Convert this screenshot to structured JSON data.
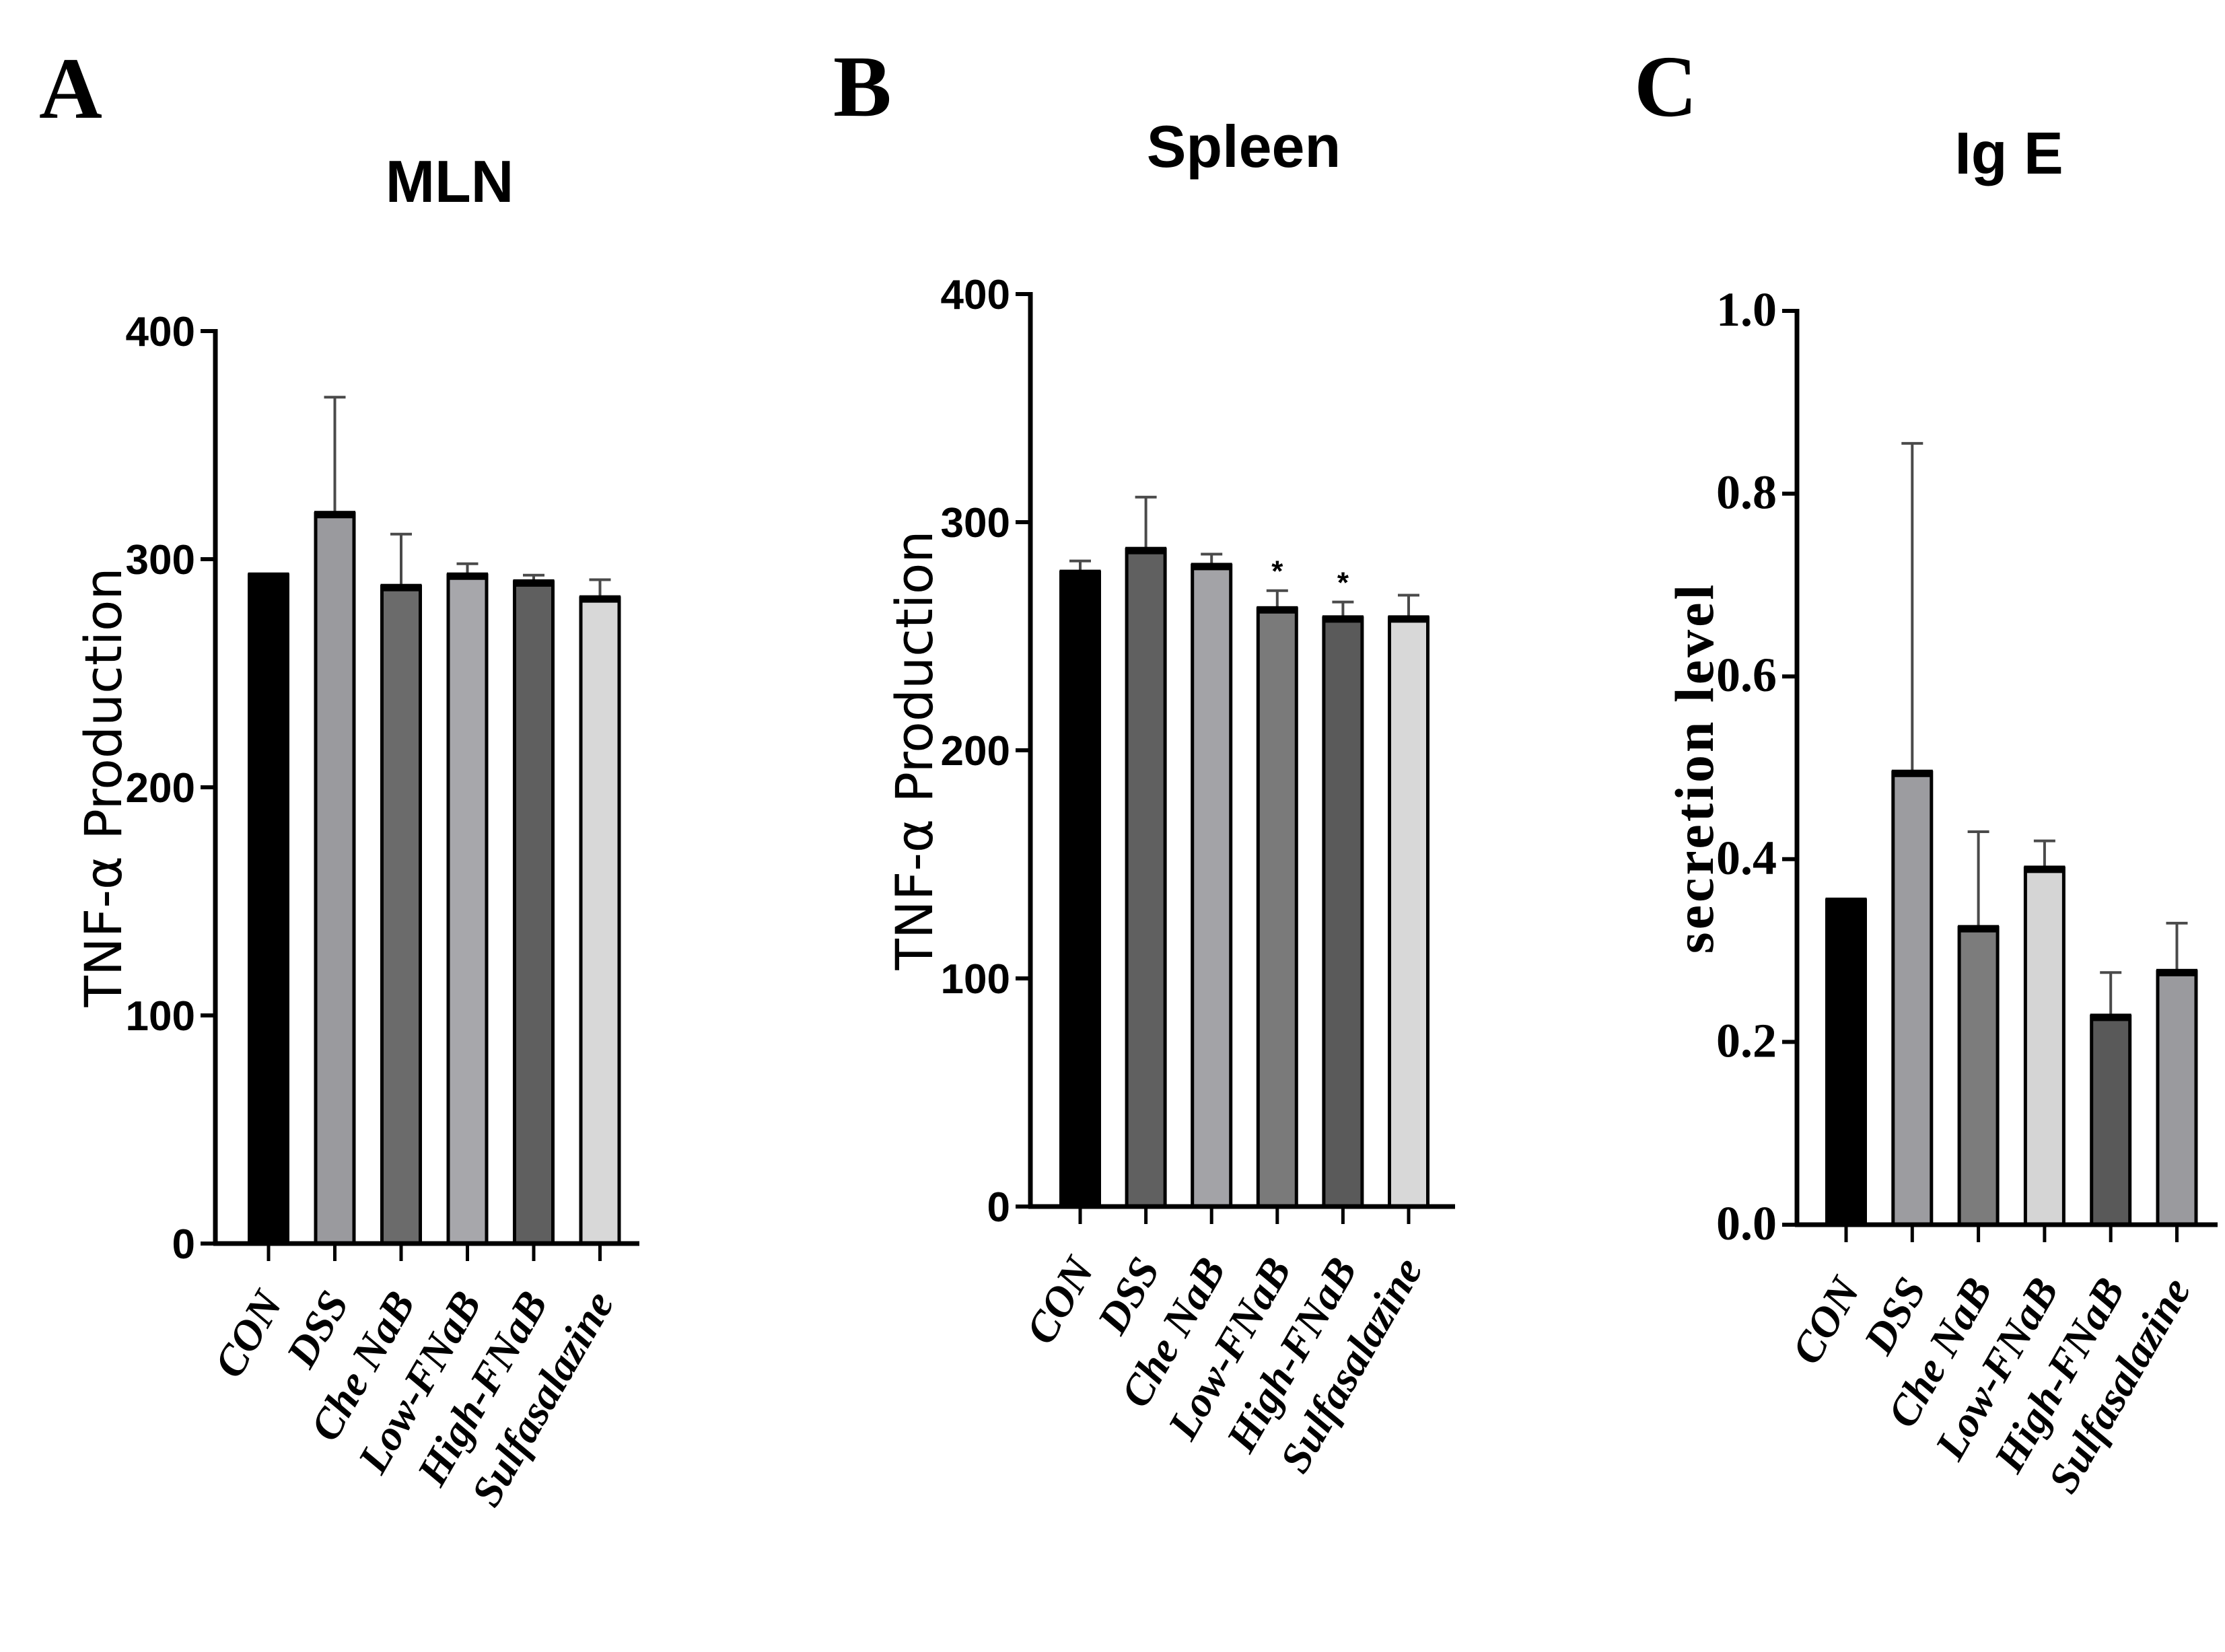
{
  "chart_data": [
    {
      "panel": "A",
      "type": "bar",
      "title": "MLN",
      "ylabel": "TNF-α Production",
      "xlabel": "",
      "ylim": [
        0,
        400
      ],
      "yticks": [
        0,
        100,
        200,
        300,
        400
      ],
      "categories": [
        "CON",
        "DSS",
        "Che NaB",
        "Low-FNaB",
        "High-FNaB",
        "Sulfasalazine"
      ],
      "values": [
        293,
        320,
        288,
        293,
        290,
        283
      ],
      "errors": [
        0,
        51,
        23,
        5,
        3,
        8
      ],
      "annotations": [
        "",
        "",
        "",
        "",
        "",
        ""
      ],
      "colors": [
        "#000000",
        "#9a9a9e",
        "#6b6b6b",
        "#a7a7ab",
        "#5f5f5f",
        "#d8d8d8"
      ],
      "grid": false,
      "legend": "none"
    },
    {
      "panel": "B",
      "type": "bar",
      "title": "Spleen",
      "ylabel": "TNF-α Production",
      "xlabel": "",
      "ylim": [
        0,
        400
      ],
      "yticks": [
        0,
        100,
        200,
        300,
        400
      ],
      "categories": [
        "CON",
        "DSS",
        "Che NaB",
        "Low-FNaB",
        "High-FNaB",
        "Sulfasalazine"
      ],
      "values": [
        278,
        288,
        281,
        262,
        258,
        258
      ],
      "errors": [
        5,
        23,
        5,
        8,
        7,
        10
      ],
      "annotations": [
        "",
        "",
        "",
        "*",
        "*",
        ""
      ],
      "colors": [
        "#000000",
        "#606060",
        "#a3a3a7",
        "#7a7a7a",
        "#5a5a5a",
        "#d8d8d8"
      ],
      "grid": false,
      "legend": "none"
    },
    {
      "panel": "C",
      "type": "bar",
      "title": "Ig E",
      "ylabel": "secretion level",
      "xlabel": "",
      "ylim": [
        0,
        1.0
      ],
      "yticks": [
        "0.0",
        "0.2",
        "0.4",
        "0.6",
        "0.8",
        "1.0"
      ],
      "categories": [
        "CON",
        "DSS",
        "Che NaB",
        "Low-FNaB",
        "High-FNaB",
        "Sulfasalazine"
      ],
      "values": [
        0.355,
        0.495,
        0.325,
        0.39,
        0.228,
        0.277
      ],
      "errors": [
        0,
        0.36,
        0.105,
        0.03,
        0.048,
        0.053
      ],
      "annotations": [
        "",
        "",
        "",
        "",
        "",
        ""
      ],
      "colors": [
        "#000000",
        "#9c9ca0",
        "#7c7c7c",
        "#d5d5d5",
        "#595959",
        "#9a9a9e"
      ],
      "grid": false,
      "legend": "none"
    }
  ]
}
